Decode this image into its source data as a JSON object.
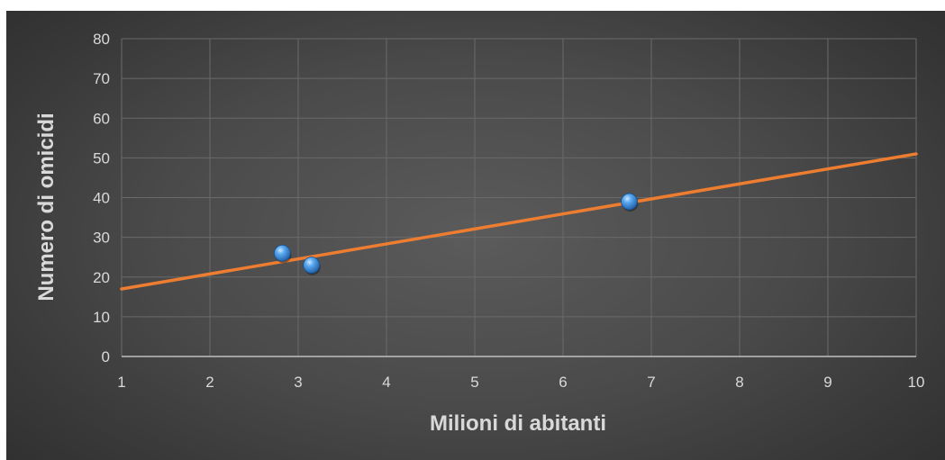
{
  "chart_data": {
    "type": "scatter",
    "title": "",
    "xlabel": "Milioni di abitanti",
    "ylabel": "Numero di omicidi",
    "xlim": [
      1,
      10
    ],
    "ylim": [
      0,
      80
    ],
    "x_ticks": [
      1,
      2,
      3,
      4,
      5,
      6,
      7,
      8,
      9,
      10
    ],
    "y_ticks": [
      0,
      10,
      20,
      30,
      40,
      50,
      60,
      70,
      80
    ],
    "grid": true,
    "legend": "none",
    "series": [
      {
        "points": [
          {
            "x": 2.82,
            "y": 26
          },
          {
            "x": 3.15,
            "y": 23
          },
          {
            "x": 6.75,
            "y": 39
          }
        ],
        "color": "#4f9de8"
      }
    ],
    "trendline": {
      "type": "linear",
      "color": "#ed7d31",
      "x_start": 1,
      "y_start": 17,
      "x_end": 10,
      "y_end": 51
    }
  }
}
